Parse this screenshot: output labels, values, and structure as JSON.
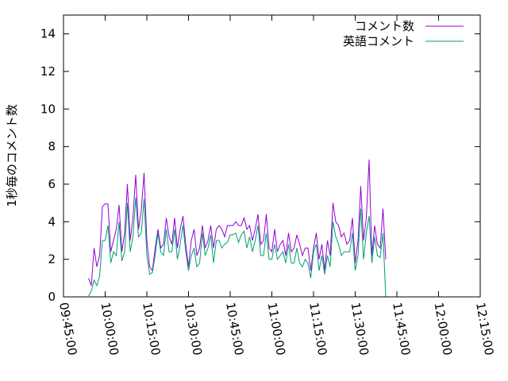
{
  "chart_data": {
    "type": "line",
    "title": "",
    "xlabel": "",
    "ylabel": "1秒毎のコメント数",
    "ylim": [
      0,
      15
    ],
    "yticks": [
      0,
      2,
      4,
      6,
      8,
      10,
      12,
      14
    ],
    "xlim": [
      "09:45:00",
      "12:15:00"
    ],
    "xticks": [
      "09:45:00",
      "10:00:00",
      "10:15:00",
      "10:30:00",
      "10:45:00",
      "11:00:00",
      "11:15:00",
      "11:30:00",
      "11:45:00",
      "12:00:00",
      "12:15:00"
    ],
    "grid": false,
    "legend": "top-right",
    "x_start": "09:54:00",
    "x_step_seconds": 60,
    "series": [
      {
        "name": "コメント数",
        "color": "#9400d3",
        "values": [
          1.0,
          0.6,
          2.6,
          1.6,
          2.2,
          4.8,
          4.95,
          4.95,
          2.4,
          3.0,
          3.6,
          4.9,
          2.4,
          3.4,
          6.0,
          3.0,
          4.2,
          6.5,
          3.6,
          4.6,
          6.6,
          3.0,
          1.6,
          1.4,
          2.6,
          3.6,
          2.6,
          2.8,
          4.2,
          3.2,
          2.8,
          4.2,
          2.6,
          3.6,
          4.3,
          2.8,
          1.6,
          3.0,
          3.6,
          2.2,
          2.6,
          3.8,
          2.6,
          3.0,
          3.8,
          2.6,
          3.6,
          3.8,
          3.6,
          3.2,
          3.8,
          3.8,
          3.8,
          4.0,
          3.8,
          3.8,
          4.2,
          3.6,
          3.8,
          3.0,
          3.6,
          4.4,
          2.8,
          3.0,
          4.4,
          2.6,
          2.4,
          3.6,
          2.4,
          2.8,
          3.0,
          2.2,
          3.4,
          2.4,
          2.6,
          3.3,
          2.8,
          2.2,
          2.6,
          2.6,
          1.4,
          2.6,
          3.4,
          2.0,
          2.8,
          1.4,
          3.0,
          2.2,
          5.0,
          4.0,
          3.8,
          3.2,
          3.4,
          2.8,
          3.0,
          4.2,
          1.8,
          3.0,
          5.9,
          3.0,
          4.2,
          7.3,
          2.2,
          3.8,
          2.8,
          2.6,
          4.7,
          2.0
        ]
      },
      {
        "name": "英語コメント",
        "color": "#009e73",
        "values": [
          0.05,
          0.3,
          0.9,
          0.6,
          1.1,
          3.0,
          3.0,
          3.8,
          1.8,
          2.4,
          2.2,
          4.0,
          1.9,
          2.4,
          5.0,
          2.4,
          3.2,
          5.3,
          3.2,
          3.4,
          5.2,
          2.2,
          1.2,
          1.3,
          2.2,
          3.4,
          2.4,
          2.2,
          3.6,
          2.4,
          2.4,
          3.6,
          2.0,
          2.8,
          3.8,
          2.4,
          1.4,
          2.2,
          2.6,
          1.6,
          1.8,
          3.4,
          2.2,
          2.6,
          3.3,
          1.8,
          3.0,
          3.0,
          2.6,
          2.8,
          2.9,
          3.3,
          3.3,
          3.4,
          2.9,
          3.3,
          3.5,
          2.6,
          3.2,
          2.4,
          3.0,
          3.8,
          2.2,
          2.2,
          3.4,
          2.0,
          2.0,
          2.8,
          2.0,
          2.2,
          2.4,
          1.8,
          2.8,
          1.8,
          1.8,
          2.6,
          1.8,
          1.6,
          2.0,
          1.8,
          1.0,
          2.4,
          2.8,
          1.4,
          2.2,
          1.2,
          2.2,
          1.6,
          4.0,
          3.2,
          2.8,
          2.2,
          2.4,
          2.4,
          2.4,
          3.4,
          1.4,
          2.2,
          4.7,
          2.0,
          3.4,
          4.3,
          1.8,
          3.2,
          2.2,
          2.1,
          3.4,
          0
        ]
      }
    ]
  }
}
